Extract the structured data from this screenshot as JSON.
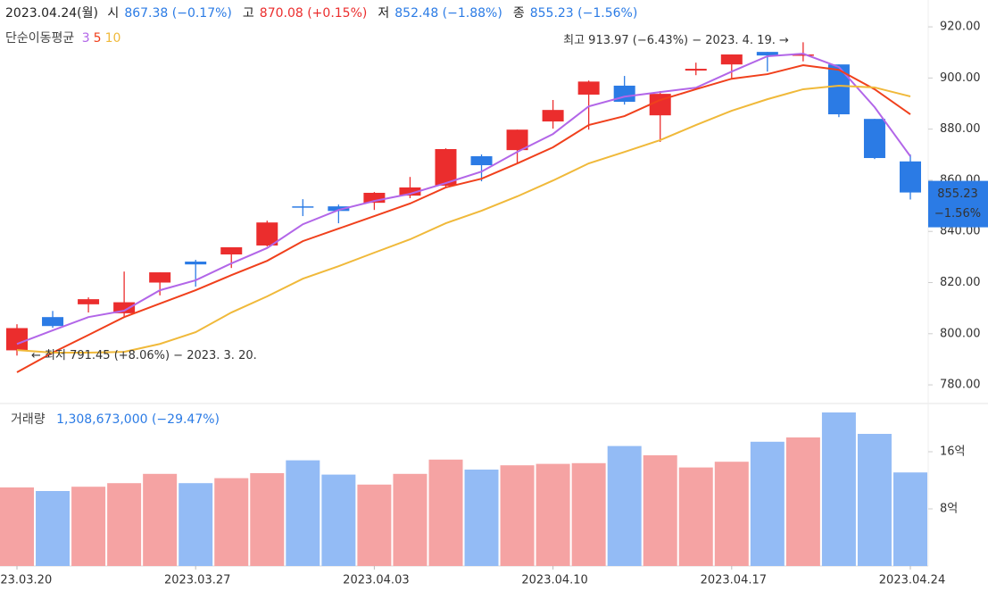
{
  "chart_data": {
    "type": "candlestick",
    "header": {
      "date": "2023.04.24(월)",
      "items": [
        {
          "label": "시",
          "value": "867.38 (−0.17%)",
          "color": "#2b7be5"
        },
        {
          "label": "고",
          "value": "870.08 (+0.15%)",
          "color": "#eb2d2d"
        },
        {
          "label": "저",
          "value": "852.48 (−1.88%)",
          "color": "#2b7be5"
        },
        {
          "label": "종",
          "value": "855.23 (−1.56%)",
          "color": "#2b7be5"
        }
      ]
    },
    "ma_title": "단순이동평균",
    "categories": [
      "2023.03.20",
      null,
      null,
      null,
      null,
      "2023.03.27",
      null,
      null,
      null,
      null,
      "2023.04.03",
      null,
      null,
      null,
      null,
      "2023.04.10",
      null,
      null,
      null,
      null,
      "2023.04.17",
      null,
      null,
      null,
      null,
      "2023.04.24"
    ],
    "open": [
      793.5,
      806.5,
      811.5,
      808.0,
      820.0,
      828.2,
      831.0,
      834.5,
      849.8,
      849.8,
      851.2,
      854.0,
      857.9,
      869.4,
      871.8,
      883.0,
      893.5,
      897.0,
      885.4,
      902.9,
      905.3,
      910.2,
      908.8,
      905.3,
      884.0,
      867.38
    ],
    "high": [
      803.7,
      808.9,
      814.2,
      824.3,
      824.0,
      828.9,
      833.8,
      844.2,
      852.6,
      850.5,
      855.4,
      861.3,
      872.5,
      870.1,
      879.8,
      891.4,
      899.0,
      900.8,
      894.9,
      906.0,
      909.2,
      910.2,
      913.97,
      905.3,
      884.0,
      870.08
    ],
    "low": [
      791.45,
      802.3,
      808.3,
      806.2,
      815.0,
      818.4,
      825.7,
      834.1,
      846.0,
      843.2,
      848.4,
      853.0,
      857.2,
      859.6,
      866.6,
      880.2,
      879.8,
      889.6,
      875.0,
      901.1,
      899.4,
      902.5,
      906.5,
      884.7,
      868.3,
      852.48
    ],
    "close": [
      802.2,
      803.0,
      813.5,
      812.3,
      824.0,
      827.1,
      833.8,
      843.5,
      849.5,
      848.0,
      855.1,
      857.2,
      872.2,
      865.9,
      879.8,
      887.5,
      898.6,
      890.7,
      893.8,
      903.6,
      909.2,
      908.8,
      909.2,
      885.8,
      868.7,
      855.23
    ],
    "up_color": "#eb2d2d",
    "down_color": "#2b7be5",
    "series": [
      {
        "name": "3",
        "color": "#b266e8",
        "values": [
          796.0,
          801.3,
          806.5,
          809.0,
          817.0,
          820.9,
          827.5,
          833.5,
          842.8,
          848.4,
          851.9,
          854.7,
          858.9,
          863.4,
          871.1,
          878.1,
          888.9,
          892.7,
          894.5,
          896.2,
          902.5,
          908.5,
          909.5,
          904.3,
          888.6,
          869.4
        ]
      },
      {
        "name": "5",
        "color": "#f0401c",
        "values": [
          784.9,
          792.6,
          799.5,
          806.5,
          811.8,
          817.0,
          822.9,
          828.5,
          836.2,
          841.1,
          846.0,
          850.9,
          857.2,
          860.6,
          866.6,
          872.9,
          881.6,
          885.1,
          891.4,
          895.6,
          899.7,
          901.5,
          905.0,
          903.2,
          895.6,
          885.8
        ]
      },
      {
        "name": "10",
        "color": "#f0b93a",
        "values": [
          793.6,
          792.6,
          792.6,
          792.9,
          796.0,
          800.6,
          808.3,
          814.6,
          821.5,
          826.4,
          831.7,
          836.9,
          843.2,
          848.1,
          853.7,
          859.9,
          866.6,
          871.1,
          875.7,
          881.6,
          887.2,
          891.7,
          895.6,
          897.0,
          896.3,
          892.8
        ]
      }
    ],
    "ylim": [
      772.7,
      930.5
    ],
    "yticks": [
      {
        "value": 780,
        "label": "780.00"
      },
      {
        "value": 800,
        "label": "800.00"
      },
      {
        "value": 820,
        "label": "820.00"
      },
      {
        "value": 840,
        "label": "840.00"
      },
      {
        "value": 860,
        "label": "860.00"
      },
      {
        "value": 880,
        "label": "880.00"
      },
      {
        "value": 900,
        "label": "900.00"
      },
      {
        "value": 920,
        "label": "920.00"
      }
    ],
    "last_change": "−1.56%",
    "annotations": {
      "high": "최고 913.97 (−6.43%) − 2023. 4. 19. →",
      "low": "← 최저 791.45 (+8.06%) − 2023. 3. 20."
    },
    "volume": {
      "title": "거래량",
      "summary": "1,308,673,000 (−29.47%)",
      "values": [
        11.0,
        10.5,
        11.1,
        11.6,
        12.9,
        11.6,
        12.3,
        13.0,
        14.8,
        12.8,
        11.4,
        12.9,
        14.9,
        13.5,
        14.1,
        14.3,
        14.4,
        16.8,
        15.5,
        13.8,
        14.6,
        17.4,
        18.0,
        21.5,
        18.5,
        13.1
      ],
      "up_color": "#f5a3a3",
      "down_color": "#93bbf5",
      "ylim": [
        0,
        22.75
      ],
      "yticks": [
        {
          "value": 8,
          "label": "8억"
        },
        {
          "value": 16,
          "label": "16억"
        }
      ]
    }
  }
}
